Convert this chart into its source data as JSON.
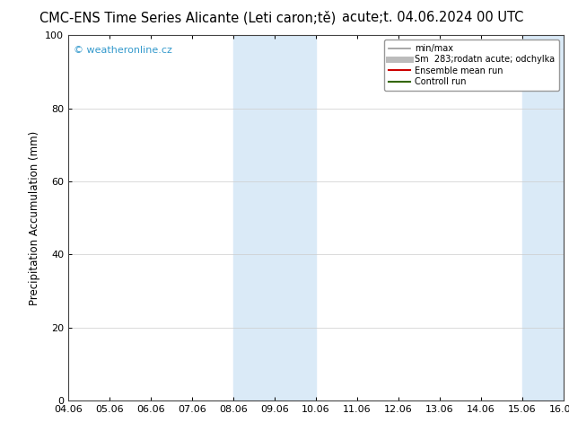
{
  "title_left": "CMC-ENS Time Series Alicante (Leti caron;tě)",
  "title_right": "acute;t. 04.06.2024 00 UTC",
  "xlabel": "",
  "ylabel": "Precipitation Accumulation (mm)",
  "ylim": [
    0,
    100
  ],
  "yticks": [
    0,
    20,
    40,
    60,
    80,
    100
  ],
  "x_tick_labels": [
    "04.06",
    "05.06",
    "06.06",
    "07.06",
    "08.06",
    "09.06",
    "10.06",
    "11.06",
    "12.06",
    "13.06",
    "14.06",
    "15.06",
    "16.06"
  ],
  "shaded_regions": [
    {
      "xmin": 4,
      "xmax": 6,
      "color": "#daeaf7"
    },
    {
      "xmin": 11,
      "xmax": 12,
      "color": "#daeaf7"
    }
  ],
  "watermark": "© weatheronline.cz",
  "watermark_color": "#3399cc",
  "background_color": "#ffffff",
  "legend_entries": [
    {
      "label": "min/max",
      "color": "#999999",
      "lw": 1.2
    },
    {
      "label": "Sm  283;rodatn acute; odchylka",
      "color": "#bbbbbb",
      "lw": 5
    },
    {
      "label": "Ensemble mean run",
      "color": "#cc0000",
      "lw": 1.5
    },
    {
      "label": "Controll run",
      "color": "#336600",
      "lw": 1.5
    }
  ],
  "title_fontsize": 10.5,
  "axis_label_fontsize": 8.5,
  "tick_fontsize": 8
}
